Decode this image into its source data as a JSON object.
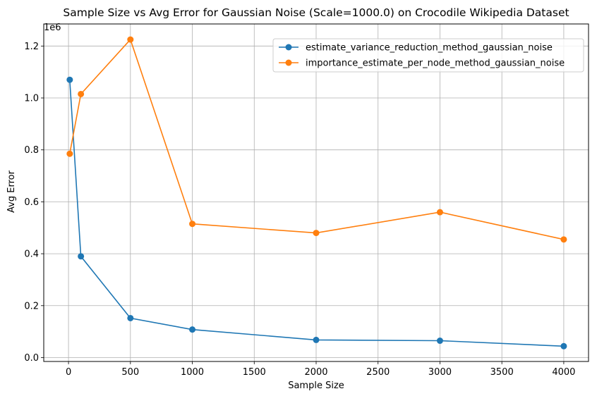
{
  "chart_data": {
    "type": "line",
    "title": "Sample Size vs Avg Error for Gaussian Noise (Scale=1000.0) on Crocodile Wikipedia Dataset",
    "xlabel": "Sample Size",
    "ylabel": "Avg Error",
    "y_offset_label": "1e6",
    "xlim": [
      -200,
      4200
    ],
    "ylim": [
      -15000,
      1285000
    ],
    "x_ticks": [
      0,
      500,
      1000,
      1500,
      2000,
      2500,
      3000,
      3500,
      4000
    ],
    "x_tick_labels": [
      "0",
      "500",
      "1000",
      "1500",
      "2000",
      "2500",
      "3000",
      "3500",
      "4000"
    ],
    "y_ticks": [
      0,
      200000,
      400000,
      600000,
      800000,
      1000000,
      1200000
    ],
    "y_tick_labels": [
      "0.0",
      "0.2",
      "0.4",
      "0.6",
      "0.8",
      "1.0",
      "1.2"
    ],
    "grid": true,
    "legend_position": "top-right",
    "series": [
      {
        "name": "estimate_variance_reduction_method_gaussian_noise",
        "color": "#1f77b4",
        "x": [
          10,
          100,
          500,
          1000,
          2000,
          3000,
          4000
        ],
        "y": [
          1070000,
          390000,
          152000,
          108000,
          68000,
          65000,
          44000
        ]
      },
      {
        "name": "importance_estimate_per_node_method_gaussian_noise",
        "color": "#ff7f0e",
        "x": [
          10,
          100,
          500,
          1000,
          2000,
          3000,
          4000
        ],
        "y": [
          785000,
          1015000,
          1225000,
          515000,
          480000,
          560000,
          455000
        ]
      }
    ]
  }
}
